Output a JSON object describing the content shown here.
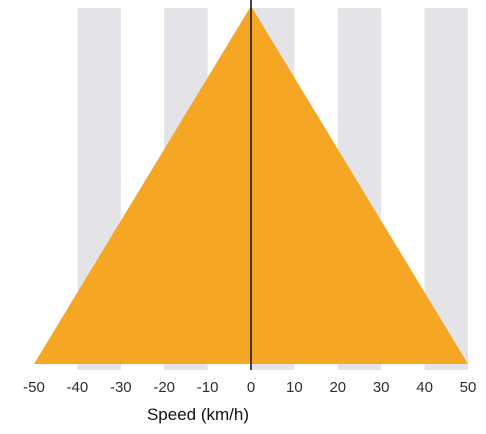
{
  "chart_data": {
    "type": "area",
    "title": "",
    "xlabel": "Speed (km/h)",
    "ylabel": "",
    "xlim": [
      -50,
      50
    ],
    "ylim": [
      0,
      1
    ],
    "x_ticks": [
      -50,
      -40,
      -30,
      -20,
      -10,
      0,
      10,
      20,
      30,
      40,
      50
    ],
    "x_tick_labels": [
      "-50",
      "-40",
      "-30",
      "-20",
      "-10",
      "0",
      "10",
      "20",
      "30",
      "40",
      "50"
    ],
    "grid": "vertical bands",
    "series": [
      {
        "x": [
          -50,
          0,
          50
        ],
        "values": [
          0,
          1,
          0
        ],
        "color": "#f5a623"
      }
    ],
    "reference_line": {
      "x": 0,
      "color": "#1a1a1a"
    },
    "band_color": "#e3e3e8"
  }
}
